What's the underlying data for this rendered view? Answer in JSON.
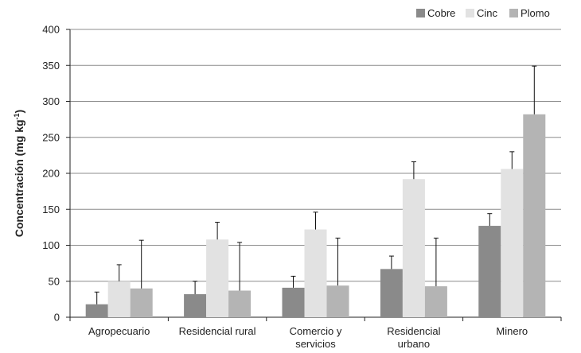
{
  "chart_data": {
    "type": "bar",
    "ylabel": "Concentración (mg kg",
    "ylabel_sup": "-1",
    "ylabel_close": ")",
    "ylim": [
      0,
      400
    ],
    "yticks": [
      0,
      50,
      100,
      150,
      200,
      250,
      300,
      350,
      400
    ],
    "grid": true,
    "legend_position": "top-right",
    "categories": [
      [
        "Agropecuario"
      ],
      [
        "Residencial rural"
      ],
      [
        "Comercio y",
        "servicios"
      ],
      [
        "Residencial",
        "urbano"
      ],
      [
        "Minero"
      ]
    ],
    "series": [
      {
        "name": "Cobre",
        "color": "#8a8a8a",
        "values": [
          18,
          32,
          41,
          67,
          127
        ],
        "errors": [
          17,
          18,
          16,
          18,
          17
        ]
      },
      {
        "name": "Cinc",
        "color": "#e2e2e2",
        "values": [
          50,
          108,
          122,
          192,
          206
        ],
        "errors": [
          23,
          24,
          24,
          24,
          24
        ]
      },
      {
        "name": "Plomo",
        "color": "#b4b4b4",
        "values": [
          40,
          37,
          44,
          43,
          282
        ],
        "errors": [
          67,
          67,
          66,
          67,
          67
        ]
      }
    ]
  }
}
